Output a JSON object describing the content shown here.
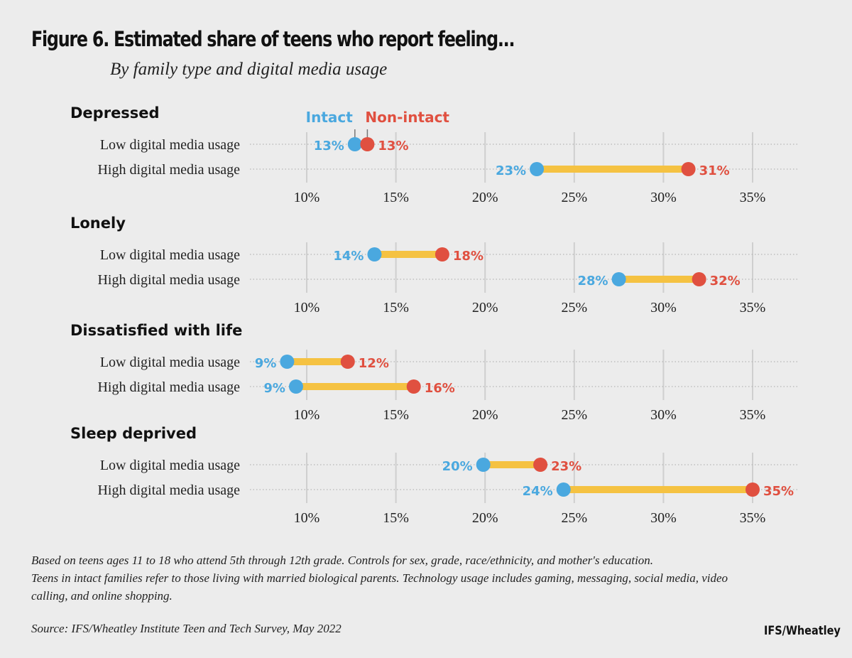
{
  "title": "Figure 6. Estimated share of teens who report feeling...",
  "subtitle": "By family type and digital media usage",
  "colors": {
    "intact": "#4aa8df",
    "non_intact": "#e05040",
    "connector": "#f5c242",
    "grid": "#cfcfcf"
  },
  "chart_data": {
    "type": "dumbbell",
    "legend": {
      "intact": "Intact",
      "non_intact": "Non-intact"
    },
    "xlim": [
      10,
      35
    ],
    "ticks": [
      10,
      15,
      20,
      25,
      30,
      35
    ],
    "tick_labels": [
      "10%",
      "15%",
      "20%",
      "25%",
      "30%",
      "35%"
    ],
    "panels": [
      {
        "title": "Depressed",
        "rows": [
          {
            "label": "Low digital media usage",
            "intact": 12.7,
            "non_intact": 13.4,
            "intact_label": "13%",
            "non_intact_label": "13%"
          },
          {
            "label": "High digital media usage",
            "intact": 22.9,
            "non_intact": 31.4,
            "intact_label": "23%",
            "non_intact_label": "31%"
          }
        ]
      },
      {
        "title": "Lonely",
        "rows": [
          {
            "label": "Low digital media usage",
            "intact": 13.8,
            "non_intact": 17.6,
            "intact_label": "14%",
            "non_intact_label": "18%"
          },
          {
            "label": "High digital media usage",
            "intact": 27.5,
            "non_intact": 32.0,
            "intact_label": "28%",
            "non_intact_label": "32%"
          }
        ]
      },
      {
        "title": "Dissatisfied with life",
        "rows": [
          {
            "label": "Low digital media usage",
            "intact": 8.9,
            "non_intact": 12.3,
            "intact_label": "9%",
            "non_intact_label": "12%"
          },
          {
            "label": "High digital media usage",
            "intact": 9.4,
            "non_intact": 16.0,
            "intact_label": "9%",
            "non_intact_label": "16%"
          }
        ]
      },
      {
        "title": "Sleep deprived",
        "rows": [
          {
            "label": "Low digital media usage",
            "intact": 19.9,
            "non_intact": 23.1,
            "intact_label": "20%",
            "non_intact_label": "23%"
          },
          {
            "label": "High digital media usage",
            "intact": 24.4,
            "non_intact": 35.0,
            "intact_label": "24%",
            "non_intact_label": "35%"
          }
        ]
      }
    ]
  },
  "footnote": {
    "line1": "Based on teens ages 11 to 18 who attend 5th through 12th grade. Controls for sex, grade, race/ethnicity, and mother's education.",
    "line2": "Teens in intact families refer to those living with married biological parents. Technology usage includes gaming, messaging, social media, video calling, and online shopping."
  },
  "source": "Source: IFS/Wheatley Institute Teen and Tech Survey, May 2022",
  "brand": "IFS/Wheatley"
}
